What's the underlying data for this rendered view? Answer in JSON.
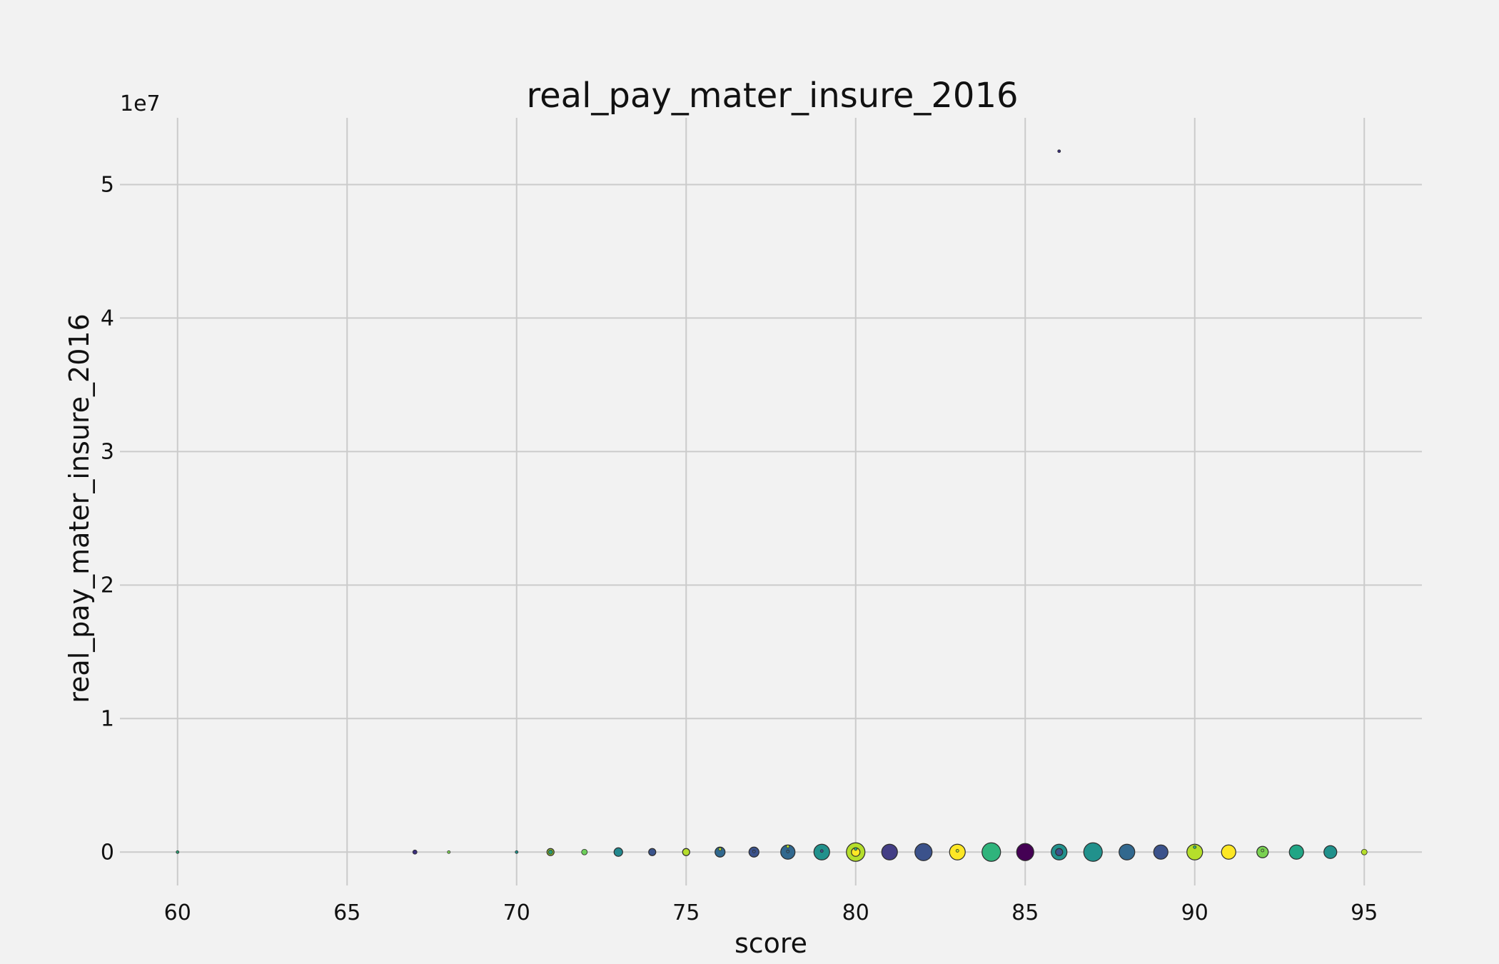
{
  "chart_data": {
    "type": "scatter",
    "title": "real_pay_mater_insure_2016",
    "xlabel": "score",
    "ylabel": "real_pay_mater_insure_2016",
    "y_offset_label": "1e7",
    "xlim": [
      58.3,
      96.7
    ],
    "ylim": [
      -2.5,
      55
    ],
    "x_ticks": [
      60,
      65,
      70,
      75,
      80,
      85,
      90,
      95
    ],
    "y_ticks": [
      0,
      1,
      2,
      3,
      4,
      5
    ],
    "grid": true,
    "y_unit_note": "values in units of 1e7",
    "colors": {
      "background": "#f2f2f2",
      "grid": "#cbcbcb",
      "text": "#111111"
    },
    "points": [
      {
        "x": 60,
        "y": 0.0,
        "size": 2,
        "color": "#2a9d72"
      },
      {
        "x": 67,
        "y": 0.0,
        "size": 3,
        "color": "#3b2f7a"
      },
      {
        "x": 68,
        "y": 0.0,
        "size": 2,
        "color": "#7ad151"
      },
      {
        "x": 70,
        "y": 0.0,
        "size": 2,
        "color": "#1f8f88"
      },
      {
        "x": 71,
        "y": 0.0,
        "size": 5,
        "color": "#a4d430"
      },
      {
        "x": 71,
        "y": 0.0,
        "size": 3,
        "color": "#2a9d72"
      },
      {
        "x": 72,
        "y": 0.0,
        "size": 4,
        "color": "#6ccf5a"
      },
      {
        "x": 73,
        "y": 0.0,
        "size": 6,
        "color": "#23888e"
      },
      {
        "x": 74,
        "y": 0.0,
        "size": 5,
        "color": "#3a548c"
      },
      {
        "x": 75,
        "y": 0.0,
        "size": 5,
        "color": "#b5de2b"
      },
      {
        "x": 76,
        "y": 0.0,
        "size": 7,
        "color": "#31688e"
      },
      {
        "x": 76,
        "y": 0.22,
        "size": 2,
        "color": "#b5de2b"
      },
      {
        "x": 77,
        "y": 0.0,
        "size": 7,
        "color": "#3b528b"
      },
      {
        "x": 77,
        "y": 0.05,
        "size": 2,
        "color": "#3b528b"
      },
      {
        "x": 78,
        "y": 0.0,
        "size": 10,
        "color": "#31688e"
      },
      {
        "x": 78,
        "y": 0.05,
        "size": 2,
        "color": "#31688e"
      },
      {
        "x": 78,
        "y": 0.42,
        "size": 2,
        "color": "#b5de2b"
      },
      {
        "x": 79,
        "y": 0.0,
        "size": 11,
        "color": "#21918c"
      },
      {
        "x": 79,
        "y": 0.08,
        "size": 2,
        "color": "#3b528b"
      },
      {
        "x": 80,
        "y": 0.0,
        "size": 13,
        "color": "#b5de2b"
      },
      {
        "x": 80,
        "y": 0.0,
        "size": 6,
        "color": "#fde725"
      },
      {
        "x": 80,
        "y": 0.23,
        "size": 2,
        "color": "#2fb47c"
      },
      {
        "x": 81,
        "y": 0.0,
        "size": 11,
        "color": "#433e85"
      },
      {
        "x": 82,
        "y": 0.0,
        "size": 12,
        "color": "#3b528b"
      },
      {
        "x": 83,
        "y": 0.0,
        "size": 11,
        "color": "#fde725"
      },
      {
        "x": 83,
        "y": 0.1,
        "size": 2,
        "color": "#b5de2b"
      },
      {
        "x": 84,
        "y": 0.0,
        "size": 13,
        "color": "#2fb47c"
      },
      {
        "x": 85,
        "y": 0.0,
        "size": 12,
        "color": "#440154"
      },
      {
        "x": 86,
        "y": 0.0,
        "size": 11,
        "color": "#21918c"
      },
      {
        "x": 86,
        "y": 0.0,
        "size": 5,
        "color": "#3b528b"
      },
      {
        "x": 86,
        "y": 52.5,
        "size": 2,
        "color": "#3b2f7a"
      },
      {
        "x": 87,
        "y": 0.0,
        "size": 13,
        "color": "#21918c"
      },
      {
        "x": 88,
        "y": 0.0,
        "size": 11,
        "color": "#31688e"
      },
      {
        "x": 89,
        "y": 0.0,
        "size": 10,
        "color": "#3b528b"
      },
      {
        "x": 90,
        "y": 0.0,
        "size": 11,
        "color": "#b5de2b"
      },
      {
        "x": 90,
        "y": 0.37,
        "size": 2,
        "color": "#2fb47c"
      },
      {
        "x": 91,
        "y": 0.0,
        "size": 10,
        "color": "#fde725"
      },
      {
        "x": 92,
        "y": 0.0,
        "size": 8,
        "color": "#7ad151"
      },
      {
        "x": 92,
        "y": 0.12,
        "size": 2,
        "color": "#7ad151"
      },
      {
        "x": 93,
        "y": 0.0,
        "size": 10,
        "color": "#21a585"
      },
      {
        "x": 94,
        "y": 0.0,
        "size": 9,
        "color": "#21918c"
      },
      {
        "x": 95,
        "y": 0.0,
        "size": 4,
        "color": "#b5de2b"
      }
    ]
  }
}
